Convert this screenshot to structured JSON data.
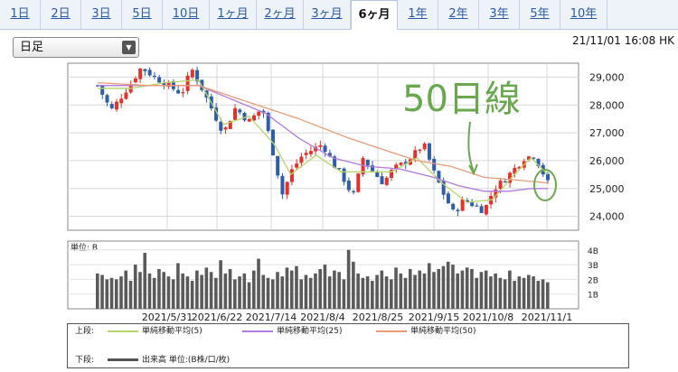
{
  "tabs": [
    {
      "label": "1日",
      "active": false
    },
    {
      "label": "2日",
      "active": false
    },
    {
      "label": "3日",
      "active": false
    },
    {
      "label": "5日",
      "active": false
    },
    {
      "label": "10日",
      "active": false
    },
    {
      "label": "1ヶ月",
      "active": false
    },
    {
      "label": "2ヶ月",
      "active": false
    },
    {
      "label": "3ヶ月",
      "active": false
    },
    {
      "label": "6ヶ月",
      "active": true
    },
    {
      "label": "1年",
      "active": false
    },
    {
      "label": "2年",
      "active": false
    },
    {
      "label": "3年",
      "active": false
    },
    {
      "label": "5年",
      "active": false
    },
    {
      "label": "10年",
      "active": false
    }
  ],
  "period_select": {
    "value": "日足"
  },
  "timestamp": "21/11/01 16:08 HK",
  "annotation": {
    "text": "50日線",
    "color": "#6aa84f"
  },
  "chart_data": {
    "type": "candlestick",
    "x_ticks": [
      "2021/5/31",
      "2021/6/22",
      "2021/7/14",
      "2021/8/4",
      "2021/8/25",
      "2021/9/15",
      "2021/10/8",
      "2021/11/1"
    ],
    "price_ylim": [
      23500,
      29500
    ],
    "price_ticks": [
      "24,000",
      "25,000",
      "26,000",
      "27,000",
      "28,000",
      "29,000"
    ],
    "volume_ylim": [
      0,
      4.6
    ],
    "volume_ticks": [
      "1B",
      "2B",
      "3B",
      "4B"
    ],
    "volume_label": "単位: B",
    "price_path": [
      [
        0,
        28700
      ],
      [
        8,
        27800
      ],
      [
        14,
        28300
      ],
      [
        20,
        28800
      ],
      [
        26,
        29350
      ],
      [
        34,
        29000
      ],
      [
        42,
        28700
      ],
      [
        50,
        28400
      ],
      [
        56,
        29300
      ],
      [
        62,
        28600
      ],
      [
        70,
        27600
      ],
      [
        75,
        27000
      ],
      [
        82,
        27900
      ],
      [
        90,
        27400
      ],
      [
        98,
        27900
      ],
      [
        104,
        26400
      ],
      [
        110,
        24800
      ],
      [
        116,
        25700
      ],
      [
        122,
        26200
      ],
      [
        128,
        26400
      ],
      [
        134,
        26600
      ],
      [
        140,
        25900
      ],
      [
        146,
        25400
      ],
      [
        152,
        24700
      ],
      [
        158,
        26100
      ],
      [
        164,
        25600
      ],
      [
        170,
        25200
      ],
      [
        176,
        25700
      ],
      [
        182,
        25900
      ],
      [
        188,
        26200
      ],
      [
        194,
        26600
      ],
      [
        200,
        25600
      ],
      [
        206,
        24800
      ],
      [
        212,
        24100
      ],
      [
        218,
        24600
      ],
      [
        224,
        24400
      ],
      [
        230,
        24200
      ],
      [
        236,
        25000
      ],
      [
        242,
        25300
      ],
      [
        248,
        25700
      ],
      [
        254,
        26100
      ],
      [
        260,
        26200
      ],
      [
        264,
        25700
      ],
      [
        268,
        25200
      ]
    ],
    "ma_series": [
      {
        "name": "単純移動平均(5)",
        "color": "#b7d66a",
        "points": [
          [
            0,
            28600
          ],
          [
            20,
            28600
          ],
          [
            40,
            28800
          ],
          [
            60,
            28900
          ],
          [
            75,
            27300
          ],
          [
            90,
            27600
          ],
          [
            105,
            26600
          ],
          [
            115,
            25500
          ],
          [
            130,
            26200
          ],
          [
            145,
            25600
          ],
          [
            160,
            25600
          ],
          [
            175,
            25600
          ],
          [
            190,
            26100
          ],
          [
            205,
            25200
          ],
          [
            220,
            24500
          ],
          [
            235,
            24600
          ],
          [
            248,
            25500
          ],
          [
            258,
            26100
          ],
          [
            268,
            25500
          ]
        ]
      },
      {
        "name": "単純移動平均(25)",
        "color": "#b27be0",
        "points": [
          [
            0,
            28700
          ],
          [
            20,
            28700
          ],
          [
            40,
            28700
          ],
          [
            60,
            28700
          ],
          [
            80,
            28200
          ],
          [
            100,
            27700
          ],
          [
            120,
            26800
          ],
          [
            140,
            26100
          ],
          [
            160,
            25800
          ],
          [
            180,
            25700
          ],
          [
            200,
            25400
          ],
          [
            215,
            25100
          ],
          [
            230,
            24900
          ],
          [
            245,
            24900
          ],
          [
            258,
            25000
          ],
          [
            268,
            25000
          ]
        ]
      },
      {
        "name": "単純移動平均(50)",
        "color": "#e89b76",
        "points": [
          [
            0,
            28800
          ],
          [
            30,
            28700
          ],
          [
            60,
            28700
          ],
          [
            90,
            28100
          ],
          [
            120,
            27500
          ],
          [
            150,
            26800
          ],
          [
            170,
            26400
          ],
          [
            190,
            26000
          ],
          [
            210,
            25800
          ],
          [
            230,
            25400
          ],
          [
            250,
            25300
          ],
          [
            268,
            25200
          ]
        ]
      }
    ],
    "volume": [
      2.4,
      2.3,
      2.0,
      2.1,
      2.0,
      2.2,
      2.6,
      1.9,
      3.0,
      2.5,
      3.8,
      2.4,
      2.1,
      2.7,
      2.5,
      2.2,
      2.0,
      3.1,
      2.4,
      2.2,
      1.9,
      2.6,
      2.3,
      2.8,
      2.5,
      2.1,
      3.3,
      2.4,
      2.7,
      2.0,
      2.2,
      2.4,
      1.8,
      2.6,
      3.4,
      2.3,
      2.1,
      2.0,
      2.5,
      2.2,
      2.8,
      2.6,
      2.9,
      2.0,
      2.3,
      2.1,
      2.4,
      2.7,
      3.0,
      2.2,
      2.6,
      2.5,
      2.0,
      4.0,
      3.2,
      2.4,
      2.1,
      2.2,
      1.9,
      2.3,
      2.6,
      2.2,
      2.0,
      2.8,
      2.4,
      2.1,
      2.7,
      2.3,
      2.6,
      2.4,
      3.1,
      2.5,
      2.7,
      2.9,
      3.2,
      3.0,
      2.4,
      2.6,
      2.8,
      2.7,
      2.1,
      2.5,
      2.6,
      2.2,
      2.4,
      2.1,
      2.0,
      2.6,
      1.9,
      2.2,
      2.1,
      2.3,
      2.2,
      1.9,
      2.0,
      1.8
    ],
    "legend_top_label": "上段:",
    "legend_bottom_label": "下段:",
    "legend_volume": "出来高 単位:(B株/口/枚)"
  }
}
